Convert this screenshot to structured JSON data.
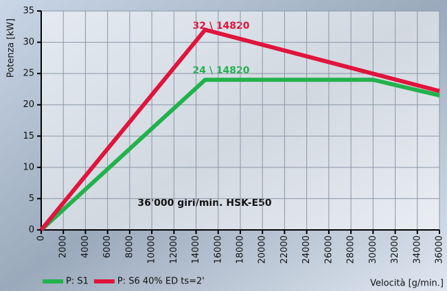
{
  "chart_data": {
    "type": "line",
    "annotations": [
      "32 \\ 14820",
      "24 \\ 14820",
      "36'000 giri/min. HSK-E50"
    ],
    "xlabel": "Velocità [g/min.]",
    "ylabel": "Potenza [kW]",
    "series": [
      {
        "name": "P: S1",
        "color": "#22b24c",
        "x": [
          0,
          14820,
          30000,
          36000
        ],
        "values": [
          0,
          24,
          24,
          21.5
        ]
      },
      {
        "name": "P: S6 40% ED ts=2'",
        "color": "#e0143c",
        "x": [
          0,
          14820,
          36000
        ],
        "values": [
          0,
          32,
          22.2
        ]
      }
    ],
    "xlim": [
      0,
      36000
    ],
    "ylim": [
      0,
      35
    ],
    "xticks": [
      0,
      2000,
      4000,
      6000,
      8000,
      10000,
      12000,
      14000,
      16000,
      18000,
      20000,
      22000,
      24000,
      26000,
      28000,
      30000,
      32000,
      34000,
      36000
    ],
    "yticks": [
      0,
      5,
      10,
      15,
      20,
      25,
      30,
      35
    ],
    "grid": true
  }
}
